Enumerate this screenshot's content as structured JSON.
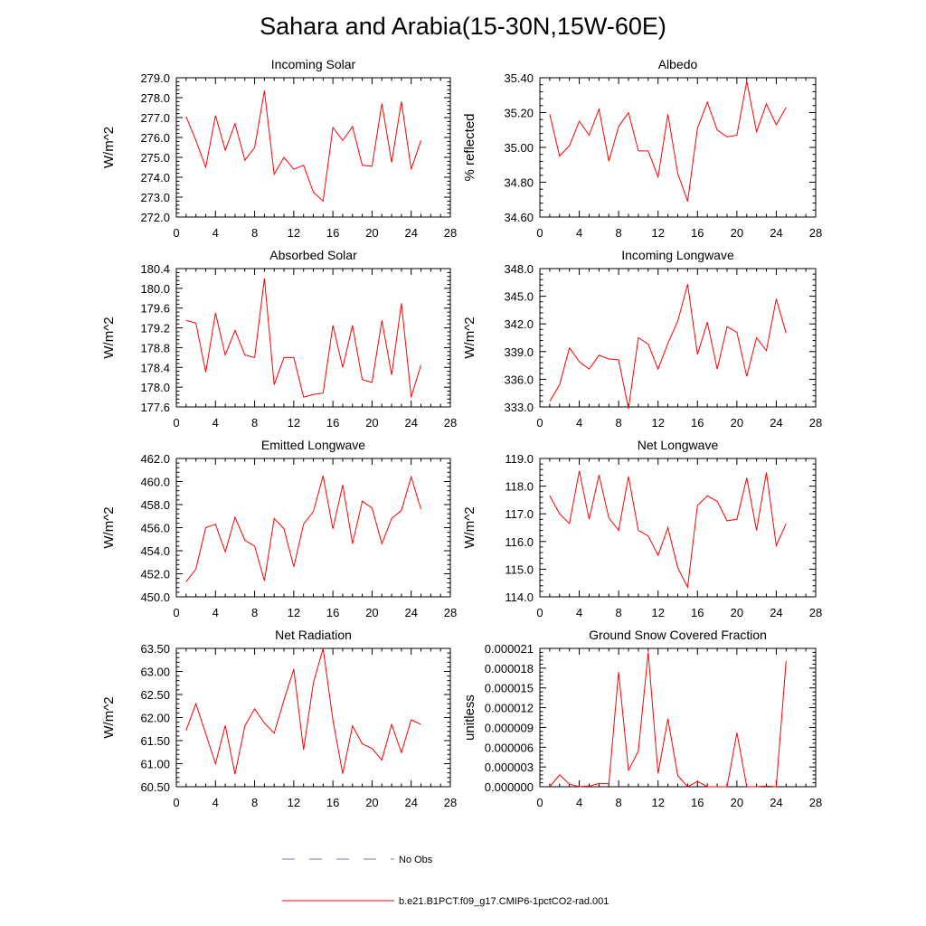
{
  "title": "Sahara and Arabia(15-30N,15W-60E)",
  "legend": {
    "entries": [
      {
        "label": "No Obs",
        "color": "#7777cc",
        "style": "dashed"
      },
      {
        "label": "b.e21.B1PCT.f09_g17.CMIP6-1pctCO2-rad.001",
        "color": "#ff0000",
        "style": "solid"
      }
    ]
  },
  "chart_data": [
    {
      "type": "line",
      "title": "Incoming Solar",
      "xlabel": "",
      "ylabel": "W/m^2",
      "xlim": [
        0,
        28
      ],
      "ylim": [
        272.0,
        279.0
      ],
      "xticks": [
        "0",
        "4",
        "8",
        "12",
        "16",
        "20",
        "24",
        "28"
      ],
      "yticks": [
        "272.0",
        "273.0",
        "274.0",
        "275.0",
        "276.0",
        "277.0",
        "278.0",
        "279.0"
      ],
      "series": [
        {
          "color": "#ff0000",
          "x": [
            1,
            2,
            3,
            4,
            5,
            6,
            7,
            8,
            9,
            10,
            11,
            12,
            13,
            14,
            15,
            16,
            17,
            18,
            19,
            20,
            21,
            22,
            23,
            24,
            25
          ],
          "values": [
            277.05,
            275.85,
            274.5,
            277.1,
            275.35,
            276.7,
            274.85,
            275.5,
            278.35,
            274.15,
            275.0,
            274.4,
            274.6,
            273.25,
            272.8,
            276.5,
            275.85,
            276.55,
            274.6,
            274.55,
            277.7,
            274.75,
            277.8,
            274.4,
            275.85
          ]
        }
      ]
    },
    {
      "type": "line",
      "title": "Albedo",
      "xlabel": "",
      "ylabel": "% reflected",
      "xlim": [
        0,
        28
      ],
      "ylim": [
        34.6,
        35.4
      ],
      "xticks": [
        "0",
        "4",
        "8",
        "12",
        "16",
        "20",
        "24",
        "28"
      ],
      "yticks": [
        "34.60",
        "34.80",
        "35.00",
        "35.20",
        "35.40"
      ],
      "series": [
        {
          "color": "#ff0000",
          "x": [
            1,
            2,
            3,
            4,
            5,
            6,
            7,
            8,
            9,
            10,
            11,
            12,
            13,
            14,
            15,
            16,
            17,
            18,
            19,
            20,
            21,
            22,
            23,
            24,
            25
          ],
          "values": [
            35.19,
            34.95,
            35.01,
            35.15,
            35.07,
            35.22,
            34.92,
            35.12,
            35.2,
            34.98,
            34.98,
            34.83,
            35.19,
            34.85,
            34.69,
            35.11,
            35.26,
            35.1,
            35.06,
            35.07,
            35.38,
            35.09,
            35.25,
            35.13,
            35.23
          ]
        }
      ]
    },
    {
      "type": "line",
      "title": "Absorbed Solar",
      "xlabel": "",
      "ylabel": "W/m^2",
      "xlim": [
        0,
        28
      ],
      "ylim": [
        177.6,
        180.4
      ],
      "xticks": [
        "0",
        "4",
        "8",
        "12",
        "16",
        "20",
        "24",
        "28"
      ],
      "yticks": [
        "177.6",
        "178.0",
        "178.4",
        "178.8",
        "179.2",
        "179.6",
        "180.0",
        "180.4"
      ],
      "series": [
        {
          "color": "#ff0000",
          "x": [
            1,
            2,
            3,
            4,
            5,
            6,
            7,
            8,
            9,
            10,
            11,
            12,
            13,
            14,
            15,
            16,
            17,
            18,
            19,
            20,
            21,
            22,
            23,
            24,
            25
          ],
          "values": [
            179.35,
            179.3,
            178.3,
            179.5,
            178.65,
            179.15,
            178.65,
            178.6,
            180.2,
            178.05,
            178.6,
            178.6,
            177.8,
            177.85,
            177.88,
            179.25,
            178.4,
            179.25,
            178.15,
            178.1,
            179.35,
            178.25,
            179.7,
            177.8,
            178.45
          ]
        }
      ]
    },
    {
      "type": "line",
      "title": "Incoming Longwave",
      "xlabel": "",
      "ylabel": "W/m^2",
      "xlim": [
        0,
        28
      ],
      "ylim": [
        333.0,
        348.0
      ],
      "xticks": [
        "0",
        "4",
        "8",
        "12",
        "16",
        "20",
        "24",
        "28"
      ],
      "yticks": [
        "333.0",
        "336.0",
        "339.0",
        "342.0",
        "345.0",
        "348.0"
      ],
      "series": [
        {
          "color": "#ff0000",
          "x": [
            1,
            2,
            3,
            4,
            5,
            6,
            7,
            8,
            9,
            10,
            11,
            12,
            13,
            14,
            15,
            16,
            17,
            18,
            19,
            20,
            21,
            22,
            23,
            24,
            25
          ],
          "values": [
            333.6,
            335.4,
            339.4,
            337.9,
            337.1,
            338.6,
            338.2,
            338.1,
            332.8,
            340.5,
            339.8,
            337.1,
            339.9,
            342.3,
            346.3,
            338.7,
            342.2,
            337.1,
            341.7,
            341.1,
            336.3,
            340.5,
            339.1,
            344.7,
            341.0
          ]
        }
      ]
    },
    {
      "type": "line",
      "title": "Emitted Longwave",
      "xlabel": "",
      "ylabel": "W/m^2",
      "xlim": [
        0,
        28
      ],
      "ylim": [
        450.0,
        462.0
      ],
      "xticks": [
        "0",
        "4",
        "8",
        "12",
        "16",
        "20",
        "24",
        "28"
      ],
      "yticks": [
        "450.0",
        "452.0",
        "454.0",
        "456.0",
        "458.0",
        "460.0",
        "462.0"
      ],
      "series": [
        {
          "color": "#ff0000",
          "x": [
            1,
            2,
            3,
            4,
            5,
            6,
            7,
            8,
            9,
            10,
            11,
            12,
            13,
            14,
            15,
            16,
            17,
            18,
            19,
            20,
            21,
            22,
            23,
            24,
            25
          ],
          "values": [
            451.3,
            452.4,
            456.0,
            456.3,
            453.9,
            456.9,
            454.9,
            454.4,
            451.4,
            456.8,
            455.9,
            452.6,
            456.3,
            457.4,
            460.5,
            455.9,
            459.7,
            454.6,
            458.3,
            457.7,
            454.6,
            456.8,
            457.5,
            460.4,
            457.6
          ]
        }
      ]
    },
    {
      "type": "line",
      "title": "Net Longwave",
      "xlabel": "",
      "ylabel": "W/m^2",
      "xlim": [
        0,
        28
      ],
      "ylim": [
        114.0,
        119.0
      ],
      "xticks": [
        "0",
        "4",
        "8",
        "12",
        "16",
        "20",
        "24",
        "28"
      ],
      "yticks": [
        "114.0",
        "115.0",
        "116.0",
        "117.0",
        "118.0",
        "119.0"
      ],
      "series": [
        {
          "color": "#ff0000",
          "x": [
            1,
            2,
            3,
            4,
            5,
            6,
            7,
            8,
            9,
            10,
            11,
            12,
            13,
            14,
            15,
            16,
            17,
            18,
            19,
            20,
            21,
            22,
            23,
            24,
            25
          ],
          "values": [
            117.65,
            117.0,
            116.65,
            118.55,
            116.8,
            118.4,
            116.85,
            116.4,
            118.35,
            116.4,
            116.2,
            115.5,
            116.5,
            115.05,
            114.35,
            117.3,
            117.65,
            117.45,
            116.75,
            116.8,
            118.3,
            116.4,
            118.5,
            115.85,
            116.65
          ]
        }
      ]
    },
    {
      "type": "line",
      "title": "Net Radiation",
      "xlabel": "",
      "ylabel": "W/m^2",
      "xlim": [
        0,
        28
      ],
      "ylim": [
        60.5,
        63.5
      ],
      "xticks": [
        "0",
        "4",
        "8",
        "12",
        "16",
        "20",
        "24",
        "28"
      ],
      "yticks": [
        "60.50",
        "61.00",
        "61.50",
        "62.00",
        "62.50",
        "63.00",
        "63.50"
      ],
      "series": [
        {
          "color": "#ff0000",
          "x": [
            1,
            2,
            3,
            4,
            5,
            6,
            7,
            8,
            9,
            10,
            11,
            12,
            13,
            14,
            15,
            16,
            17,
            18,
            19,
            20,
            21,
            22,
            23,
            24,
            25
          ],
          "values": [
            61.72,
            62.3,
            61.65,
            61.0,
            61.83,
            60.77,
            61.82,
            62.19,
            61.88,
            61.66,
            62.38,
            63.05,
            61.3,
            62.75,
            63.5,
            61.95,
            60.78,
            61.82,
            61.43,
            61.33,
            61.08,
            61.85,
            61.24,
            61.95,
            61.85
          ]
        }
      ]
    },
    {
      "type": "line",
      "title": "Ground Snow Covered Fraction",
      "xlabel": "",
      "ylabel": "unitless",
      "xlim": [
        0,
        28
      ],
      "ylim": [
        0.0,
        2.1e-05
      ],
      "xticks": [
        "0",
        "4",
        "8",
        "12",
        "16",
        "20",
        "24",
        "28"
      ],
      "yticks": [
        "0.000000",
        "0.000003",
        "0.000006",
        "0.000009",
        "0.000012",
        "0.000015",
        "0.000018",
        "0.000021"
      ],
      "series": [
        {
          "color": "#ff0000",
          "x": [
            1,
            2,
            3,
            4,
            5,
            6,
            7,
            8,
            9,
            10,
            11,
            12,
            13,
            14,
            15,
            16,
            17,
            18,
            19,
            20,
            21,
            22,
            23,
            24,
            25
          ],
          "values": [
            0.0,
            1.8e-06,
            4e-07,
            0.0,
            1e-07,
            5e-07,
            5e-07,
            1.74e-05,
            2.5e-06,
            5.4e-06,
            2.04e-05,
            2e-06,
            1.03e-05,
            1.7e-06,
            0.0,
            8e-07,
            0.0,
            0.0,
            0.0,
            8.2e-06,
            0.0,
            0.0,
            1e-07,
            0.0,
            1.91e-05
          ]
        }
      ]
    }
  ]
}
